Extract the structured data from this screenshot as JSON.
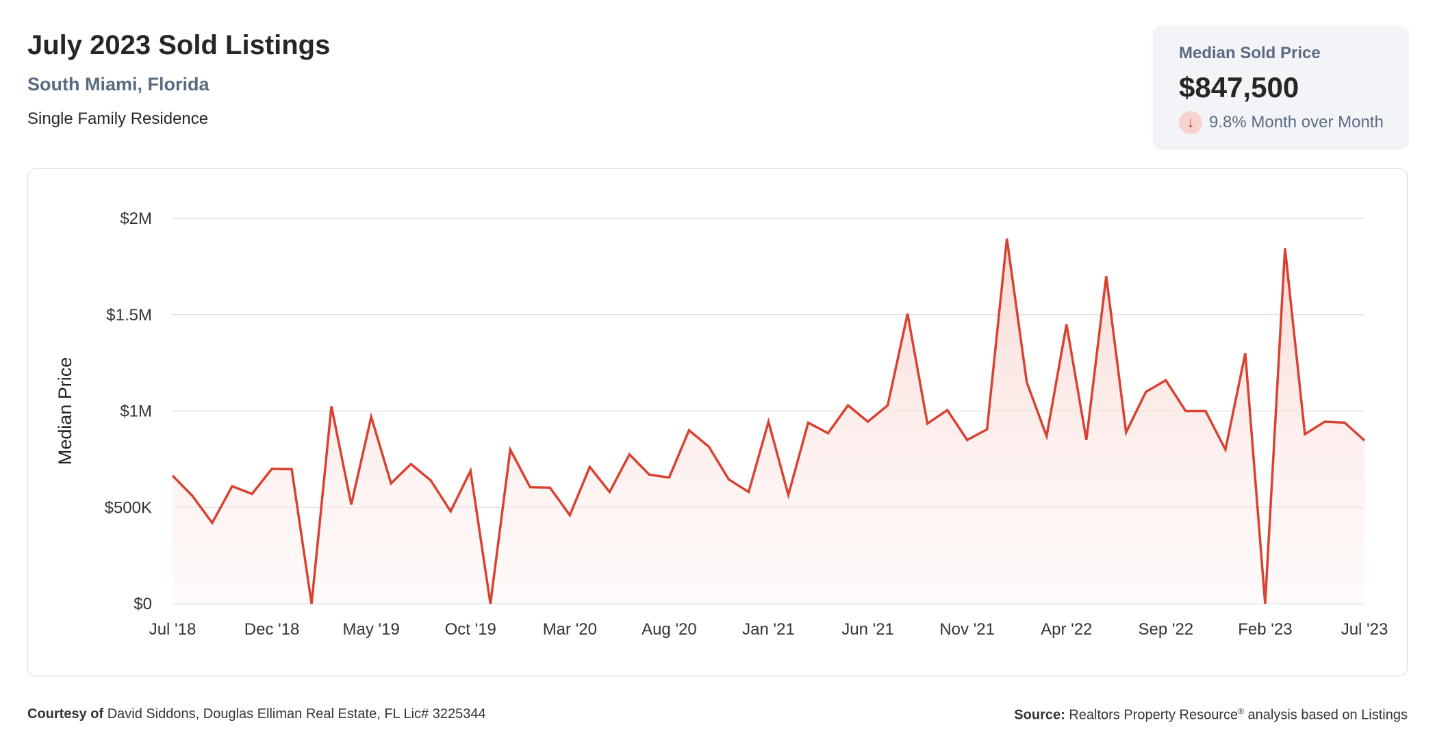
{
  "header": {
    "title": "July 2023 Sold Listings",
    "location": "South Miami, Florida",
    "property_type": "Single Family Residence"
  },
  "stat_card": {
    "label": "Median Sold Price",
    "value": "$847,500",
    "change_text": "9.8% Month over Month",
    "change_direction": "down",
    "icon": "arrow-down-icon"
  },
  "footer": {
    "courtesy_label": "Courtesy of",
    "courtesy_text": "David Siddons, Douglas Elliman Real Estate, FL Lic# 3225344",
    "source_label": "Source:",
    "source_text": "Realtors Property Resource",
    "source_mark": "®",
    "source_suffix": "analysis based on Listings"
  },
  "colors": {
    "line": "#d94130",
    "fill_top": "#f9d3cd",
    "grid": "#e3e3e3"
  },
  "chart_data": {
    "type": "area",
    "title": "",
    "xlabel": "",
    "ylabel": "Median Price",
    "ylim": [
      0,
      2000000
    ],
    "y_ticks": [
      0,
      500000,
      1000000,
      1500000,
      2000000
    ],
    "y_tick_labels": [
      "$0",
      "$500K",
      "$1M",
      "$1.5M",
      "$2M"
    ],
    "x_tick_labels": [
      "Jul '18",
      "Dec '18",
      "May '19",
      "Oct '19",
      "Mar '20",
      "Aug '20",
      "Jan '21",
      "Jun '21",
      "Nov '21",
      "Apr '22",
      "Sep '22",
      "Feb '23",
      "Jul '23"
    ],
    "grid": true,
    "series": [
      {
        "x": [
          "2018-07",
          "2018-08",
          "2018-09",
          "2018-10",
          "2018-11",
          "2018-12",
          "2019-01",
          "2019-02",
          "2019-03",
          "2019-04",
          "2019-05",
          "2019-06",
          "2019-07",
          "2019-08",
          "2019-09",
          "2019-10",
          "2019-11",
          "2019-12",
          "2020-01",
          "2020-02",
          "2020-03",
          "2020-04",
          "2020-05",
          "2020-06",
          "2020-07",
          "2020-08",
          "2020-09",
          "2020-10",
          "2020-11",
          "2020-12",
          "2021-01",
          "2021-02",
          "2021-03",
          "2021-04",
          "2021-05",
          "2021-06",
          "2021-07",
          "2021-08",
          "2021-09",
          "2021-10",
          "2021-11",
          "2021-12",
          "2022-01",
          "2022-02",
          "2022-03",
          "2022-04",
          "2022-05",
          "2022-06",
          "2022-07",
          "2022-08",
          "2022-09",
          "2022-10",
          "2022-11",
          "2022-12",
          "2023-01",
          "2023-02",
          "2023-03",
          "2023-04",
          "2023-05",
          "2023-06",
          "2023-07"
        ],
        "values": [
          665000,
          560000,
          420000,
          610000,
          570000,
          700000,
          698000,
          0,
          1025000,
          515000,
          970000,
          625000,
          725000,
          640000,
          480000,
          690000,
          0,
          800000,
          605000,
          603000,
          460000,
          710000,
          580000,
          775000,
          670000,
          655000,
          900000,
          815000,
          645000,
          580000,
          945000,
          565000,
          940000,
          885000,
          1030000,
          945000,
          1030000,
          1505000,
          935000,
          1005000,
          850000,
          905000,
          1895000,
          1150000,
          870000,
          1450000,
          850000,
          1700000,
          890000,
          1100000,
          1160000,
          1000000,
          1000000,
          800000,
          1300000,
          0,
          1845000,
          880000,
          945000,
          940000,
          847500
        ]
      }
    ]
  }
}
